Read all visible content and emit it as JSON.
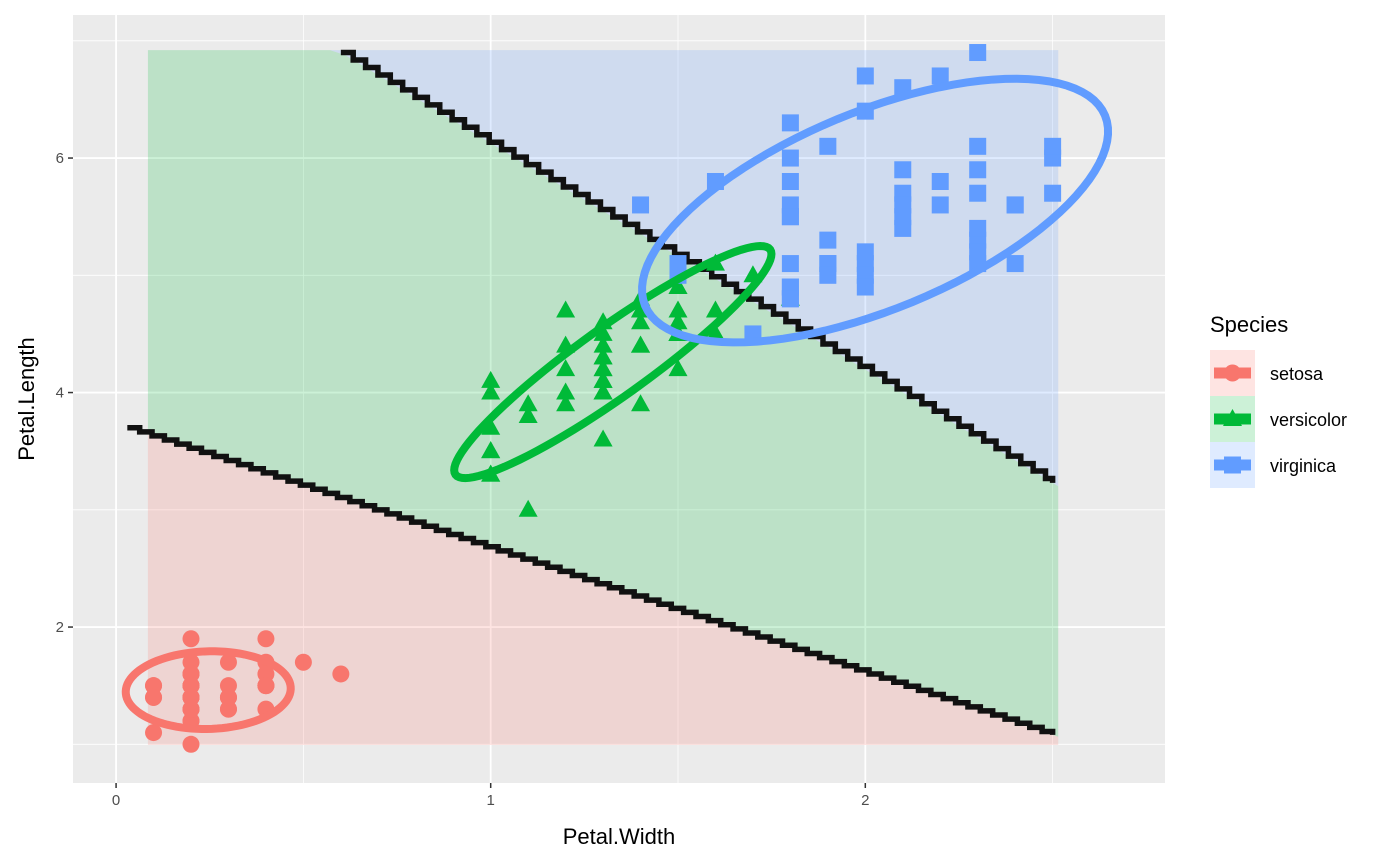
{
  "chart_data": {
    "type": "scatter",
    "xlabel": "Petal.Width",
    "ylabel": "Petal.Length",
    "xlim": [
      -0.115,
      2.8
    ],
    "ylim": [
      0.67,
      7.22
    ],
    "x_ticks": [
      0,
      1,
      2
    ],
    "y_ticks": [
      2,
      4,
      6
    ],
    "x_tick_labels": [
      "0",
      "1",
      "2"
    ],
    "y_tick_labels": [
      "2",
      "4",
      "6"
    ],
    "grid": true,
    "legend": {
      "title": "Species",
      "placement": "right"
    },
    "colors": {
      "setosa": "#F8766D",
      "versicolor": "#00BA38",
      "virginica": "#619CFF",
      "panel": "#EBEBEB",
      "boundary": "#111111"
    },
    "decision_region": {
      "x": [
        0.085,
        2.515
      ],
      "y": [
        0.994,
        6.92
      ]
    },
    "boundaries": [
      {
        "between": "setosa/versicolor",
        "from": [
          0.03,
          3.7
        ],
        "to": [
          2.5,
          1.08
        ]
      },
      {
        "between": "versicolor/virginica",
        "from": [
          0.6,
          6.9
        ],
        "to": [
          2.5,
          3.23
        ]
      }
    ],
    "series": [
      {
        "name": "setosa",
        "shape": "circle",
        "ellipse": {
          "center": [
            0.246,
            1.462
          ],
          "axis1": [
            0.22,
            0.03
          ],
          "axis2": [
            -0.01,
            0.33
          ]
        },
        "points": [
          [
            0.2,
            1.4
          ],
          [
            0.2,
            1.4
          ],
          [
            0.2,
            1.3
          ],
          [
            0.2,
            1.5
          ],
          [
            0.2,
            1.4
          ],
          [
            0.4,
            1.7
          ],
          [
            0.3,
            1.4
          ],
          [
            0.2,
            1.5
          ],
          [
            0.2,
            1.4
          ],
          [
            0.1,
            1.5
          ],
          [
            0.2,
            1.5
          ],
          [
            0.2,
            1.6
          ],
          [
            0.1,
            1.4
          ],
          [
            0.1,
            1.1
          ],
          [
            0.2,
            1.2
          ],
          [
            0.4,
            1.5
          ],
          [
            0.4,
            1.3
          ],
          [
            0.3,
            1.4
          ],
          [
            0.3,
            1.7
          ],
          [
            0.3,
            1.5
          ],
          [
            0.2,
            1.7
          ],
          [
            0.4,
            1.5
          ],
          [
            0.2,
            1.0
          ],
          [
            0.5,
            1.7
          ],
          [
            0.2,
            1.9
          ],
          [
            0.2,
            1.6
          ],
          [
            0.4,
            1.6
          ],
          [
            0.2,
            1.5
          ],
          [
            0.2,
            1.4
          ],
          [
            0.2,
            1.6
          ],
          [
            0.2,
            1.6
          ],
          [
            0.4,
            1.5
          ],
          [
            0.1,
            1.5
          ],
          [
            0.2,
            1.4
          ],
          [
            0.2,
            1.5
          ],
          [
            0.2,
            1.2
          ],
          [
            0.2,
            1.3
          ],
          [
            0.1,
            1.4
          ],
          [
            0.2,
            1.3
          ],
          [
            0.2,
            1.5
          ],
          [
            0.3,
            1.3
          ],
          [
            0.3,
            1.3
          ],
          [
            0.2,
            1.3
          ],
          [
            0.6,
            1.6
          ],
          [
            0.4,
            1.9
          ],
          [
            0.3,
            1.4
          ],
          [
            0.2,
            1.6
          ],
          [
            0.2,
            1.4
          ],
          [
            0.2,
            1.5
          ],
          [
            0.2,
            1.4
          ]
        ]
      },
      {
        "name": "versicolor",
        "shape": "triangle",
        "ellipse": {
          "center": [
            1.326,
            4.26
          ],
          "axis1": [
            0.42,
            0.96
          ],
          "axis2": [
            0.054,
            -0.24
          ]
        },
        "points": [
          [
            1.4,
            4.7
          ],
          [
            1.5,
            4.5
          ],
          [
            1.5,
            4.9
          ],
          [
            1.3,
            4.0
          ],
          [
            1.5,
            4.6
          ],
          [
            1.3,
            4.5
          ],
          [
            1.6,
            4.7
          ],
          [
            1.0,
            3.3
          ],
          [
            1.3,
            4.6
          ],
          [
            1.4,
            3.9
          ],
          [
            1.0,
            3.5
          ],
          [
            1.5,
            4.2
          ],
          [
            1.0,
            4.0
          ],
          [
            1.4,
            4.7
          ],
          [
            1.3,
            3.6
          ],
          [
            1.4,
            4.4
          ],
          [
            1.5,
            4.5
          ],
          [
            1.0,
            4.1
          ],
          [
            1.5,
            4.5
          ],
          [
            1.1,
            3.9
          ],
          [
            1.8,
            4.8
          ],
          [
            1.3,
            4.0
          ],
          [
            1.5,
            4.9
          ],
          [
            1.2,
            4.7
          ],
          [
            1.3,
            4.3
          ],
          [
            1.4,
            4.4
          ],
          [
            1.4,
            4.8
          ],
          [
            1.7,
            5.0
          ],
          [
            1.5,
            4.5
          ],
          [
            1.0,
            3.5
          ],
          [
            1.1,
            3.8
          ],
          [
            1.0,
            3.7
          ],
          [
            1.2,
            3.9
          ],
          [
            1.6,
            5.1
          ],
          [
            1.5,
            4.5
          ],
          [
            1.6,
            4.5
          ],
          [
            1.5,
            4.7
          ],
          [
            1.3,
            4.4
          ],
          [
            1.3,
            4.1
          ],
          [
            1.3,
            4.0
          ],
          [
            1.2,
            4.4
          ],
          [
            1.4,
            4.6
          ],
          [
            1.2,
            4.0
          ],
          [
            1.0,
            3.3
          ],
          [
            1.3,
            4.2
          ],
          [
            1.2,
            4.2
          ],
          [
            1.3,
            4.2
          ],
          [
            1.3,
            4.3
          ],
          [
            1.1,
            3.0
          ],
          [
            1.3,
            4.1
          ]
        ]
      },
      {
        "name": "virginica",
        "shape": "square",
        "ellipse": {
          "center": [
            2.026,
            5.552
          ],
          "axis1": [
            0.614,
            0.81
          ],
          "axis2": [
            0.1,
            -0.78
          ]
        },
        "points": [
          [
            2.5,
            6.0
          ],
          [
            1.9,
            5.1
          ],
          [
            2.1,
            5.9
          ],
          [
            1.8,
            5.6
          ],
          [
            2.2,
            5.8
          ],
          [
            2.1,
            6.6
          ],
          [
            1.7,
            4.5
          ],
          [
            1.8,
            6.3
          ],
          [
            1.8,
            5.8
          ],
          [
            2.5,
            6.1
          ],
          [
            2.0,
            5.1
          ],
          [
            1.9,
            5.3
          ],
          [
            2.1,
            5.5
          ],
          [
            2.0,
            5.0
          ],
          [
            2.4,
            5.1
          ],
          [
            2.3,
            5.3
          ],
          [
            1.8,
            5.5
          ],
          [
            2.2,
            6.7
          ],
          [
            2.3,
            6.9
          ],
          [
            1.5,
            5.0
          ],
          [
            2.3,
            5.7
          ],
          [
            2.0,
            4.9
          ],
          [
            2.0,
            6.7
          ],
          [
            1.8,
            4.9
          ],
          [
            2.1,
            5.7
          ],
          [
            1.8,
            6.0
          ],
          [
            1.8,
            4.8
          ],
          [
            1.8,
            4.9
          ],
          [
            2.1,
            5.6
          ],
          [
            1.6,
            5.8
          ],
          [
            1.9,
            6.1
          ],
          [
            2.0,
            6.4
          ],
          [
            2.2,
            5.6
          ],
          [
            1.5,
            5.1
          ],
          [
            1.4,
            5.6
          ],
          [
            2.3,
            6.1
          ],
          [
            2.4,
            5.6
          ],
          [
            1.8,
            5.5
          ],
          [
            1.8,
            4.8
          ],
          [
            2.1,
            5.4
          ],
          [
            2.4,
            5.6
          ],
          [
            2.3,
            5.1
          ],
          [
            1.9,
            5.1
          ],
          [
            2.3,
            5.9
          ],
          [
            2.5,
            5.7
          ],
          [
            2.3,
            5.2
          ],
          [
            1.9,
            5.0
          ],
          [
            2.0,
            5.2
          ],
          [
            2.3,
            5.4
          ],
          [
            1.8,
            5.1
          ]
        ]
      }
    ]
  }
}
